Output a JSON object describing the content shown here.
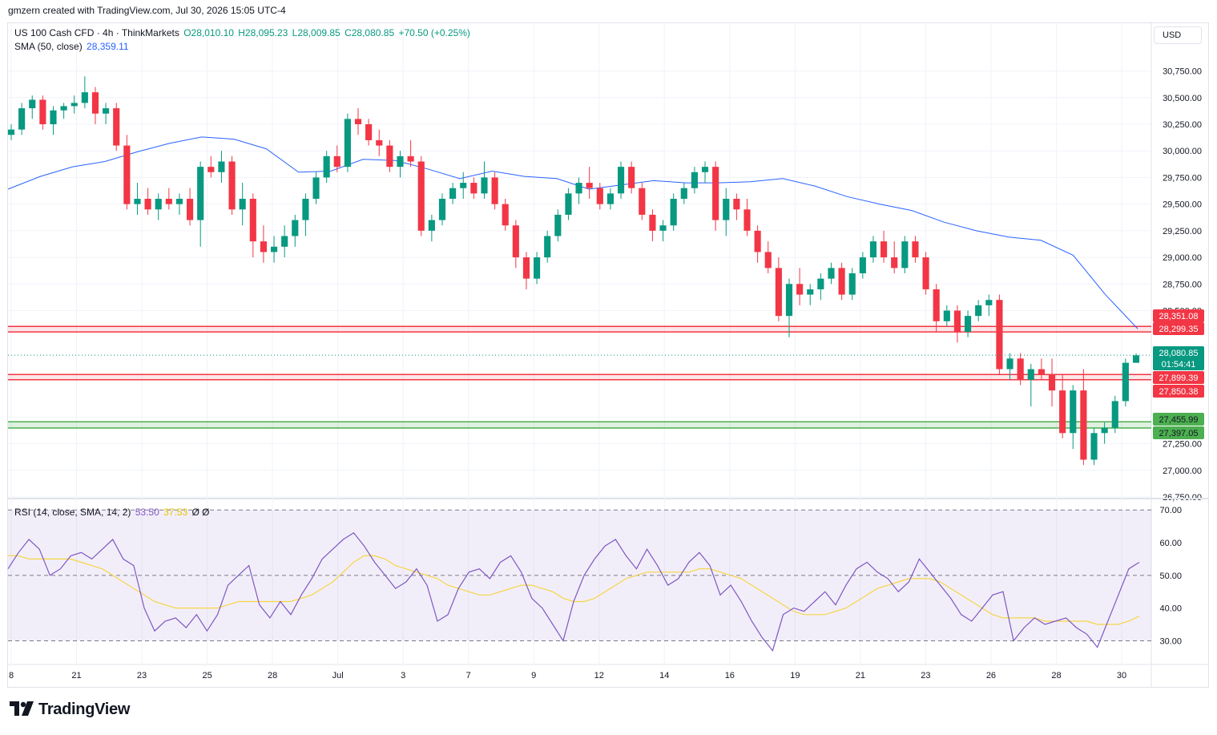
{
  "header": {
    "attribution": "gmzern created with TradingView.com, Jul 30, 2026 15:05 UTC-4"
  },
  "legend": {
    "symbol": "US 100 Cash CFD · 4h · ThinkMarkets",
    "open": "O28,010.10",
    "high": "H28,095.23",
    "low": "L28,009.85",
    "close": "C28,080.85",
    "change": "+70.50 (+0.25%)",
    "sma_label": "SMA (50, close)",
    "sma_value": "28,359.11",
    "rsi_label": "RSI (14, close, SMA, 14, 2)",
    "rsi_value": "53.50",
    "rsi_sma_value": "37.53",
    "rsi_extra": "Ø  Ø"
  },
  "currency": "USD",
  "colors": {
    "up": "#089981",
    "down": "#f23645",
    "sma": "#2962ff",
    "rsi": "#7e57c2",
    "rsi_ma": "#f5d547",
    "resistance": "#f23645",
    "support": "#4caf50"
  },
  "footer": {
    "brand": "TradingView"
  },
  "chart_data": [
    {
      "type": "candlestick",
      "ylim": [
        26750,
        30950
      ],
      "price_ticks": [
        "30,750.00",
        "30,500.00",
        "30,250.00",
        "30,000.00",
        "29,750.00",
        "29,500.00",
        "29,250.00",
        "29,000.00",
        "28,750.00",
        "28,500.00",
        "27,500.00",
        "27,250.00",
        "27,000.00",
        "26,750.00"
      ],
      "tick_values": [
        30750,
        30500,
        30250,
        30000,
        29750,
        29500,
        29250,
        29000,
        28750,
        28500,
        27500,
        27250,
        27000,
        26750
      ],
      "x_ticks": [
        "8",
        "21",
        "23",
        "25",
        "28",
        "Jul",
        "3",
        "7",
        "9",
        "12",
        "14",
        "16",
        "19",
        "21",
        "23",
        "26",
        "28",
        "30"
      ],
      "sma_series_name": "SMA (50, close)",
      "sma": [
        29640,
        29760,
        29850,
        29900,
        29990,
        30070,
        30130,
        30110,
        30020,
        29800,
        29810,
        29920,
        29910,
        29830,
        29740,
        29810,
        29760,
        29740,
        29640,
        29680,
        29720,
        29700,
        29700,
        29710,
        29740,
        29670,
        29570,
        29500,
        29440,
        29330,
        29250,
        29190,
        29160,
        29020,
        28650,
        28330
      ],
      "horizontal_levels": [
        {
          "value": 28351.08,
          "label": "28,351.08",
          "kind": "resistance"
        },
        {
          "value": 28299.35,
          "label": "28,299.35",
          "kind": "resistance"
        },
        {
          "value": 27899.39,
          "label": "27,899.39",
          "kind": "resistance"
        },
        {
          "value": 27850.38,
          "label": "27,850.38",
          "kind": "resistance"
        },
        {
          "value": 27455.99,
          "label": "27,455.99",
          "kind": "support"
        },
        {
          "value": 27397.05,
          "label": "27,397.05",
          "kind": "support"
        }
      ],
      "last_price": {
        "value": 28080.85,
        "label": "28,080.85",
        "countdown": "01:54:41"
      },
      "candles": [
        [
          30150,
          30250,
          30100,
          30200
        ],
        [
          30200,
          30450,
          30150,
          30400
        ],
        [
          30400,
          30520,
          30300,
          30480
        ],
        [
          30480,
          30520,
          30200,
          30250
        ],
        [
          30250,
          30420,
          30150,
          30380
        ],
        [
          30380,
          30450,
          30300,
          30420
        ],
        [
          30420,
          30520,
          30350,
          30450
        ],
        [
          30450,
          30700,
          30400,
          30550
        ],
        [
          30550,
          30600,
          30250,
          30350
        ],
        [
          30350,
          30450,
          30250,
          30400
        ],
        [
          30400,
          30450,
          30000,
          30050
        ],
        [
          30050,
          30150,
          29450,
          29500
        ],
        [
          29500,
          29700,
          29400,
          29550
        ],
        [
          29550,
          29650,
          29400,
          29450
        ],
        [
          29450,
          29600,
          29350,
          29550
        ],
        [
          29550,
          29650,
          29450,
          29500
        ],
        [
          29500,
          29600,
          29400,
          29550
        ],
        [
          29550,
          29650,
          29300,
          29350
        ],
        [
          29350,
          29900,
          29100,
          29850
        ],
        [
          29850,
          29950,
          29750,
          29800
        ],
        [
          29800,
          30000,
          29700,
          29900
        ],
        [
          29900,
          29950,
          29400,
          29450
        ],
        [
          29450,
          29700,
          29300,
          29550
        ],
        [
          29550,
          29600,
          29000,
          29150
        ],
        [
          29150,
          29300,
          28950,
          29050
        ],
        [
          29050,
          29200,
          28950,
          29100
        ],
        [
          29100,
          29300,
          29000,
          29200
        ],
        [
          29200,
          29400,
          29100,
          29350
        ],
        [
          29350,
          29600,
          29200,
          29550
        ],
        [
          29550,
          29800,
          29500,
          29750
        ],
        [
          29750,
          30000,
          29700,
          29950
        ],
        [
          29950,
          30050,
          29800,
          29850
        ],
        [
          29850,
          30350,
          29800,
          30300
        ],
        [
          30300,
          30400,
          30150,
          30250
        ],
        [
          30250,
          30300,
          30050,
          30100
        ],
        [
          30100,
          30200,
          29950,
          30050
        ],
        [
          30050,
          30100,
          29800,
          29850
        ],
        [
          29850,
          30000,
          29750,
          29950
        ],
        [
          29950,
          30100,
          29850,
          29900
        ],
        [
          29900,
          29950,
          29200,
          29250
        ],
        [
          29250,
          29400,
          29150,
          29350
        ],
        [
          29350,
          29600,
          29300,
          29550
        ],
        [
          29550,
          29700,
          29500,
          29650
        ],
        [
          29650,
          29800,
          29550,
          29700
        ],
        [
          29700,
          29750,
          29550,
          29600
        ],
        [
          29600,
          29900,
          29550,
          29750
        ],
        [
          29750,
          29800,
          29450,
          29500
        ],
        [
          29500,
          29550,
          29250,
          29300
        ],
        [
          29300,
          29350,
          28900,
          29000
        ],
        [
          29000,
          29050,
          28700,
          28800
        ],
        [
          28800,
          29050,
          28750,
          29000
        ],
        [
          29000,
          29250,
          28950,
          29200
        ],
        [
          29200,
          29450,
          29150,
          29400
        ],
        [
          29400,
          29650,
          29350,
          29600
        ],
        [
          29600,
          29750,
          29500,
          29700
        ],
        [
          29700,
          29850,
          29550,
          29650
        ],
        [
          29650,
          29700,
          29450,
          29500
        ],
        [
          29500,
          29650,
          29450,
          29600
        ],
        [
          29600,
          29900,
          29550,
          29850
        ],
        [
          29850,
          29900,
          29600,
          29650
        ],
        [
          29650,
          29700,
          29350,
          29400
        ],
        [
          29400,
          29450,
          29150,
          29250
        ],
        [
          29250,
          29350,
          29150,
          29300
        ],
        [
          29300,
          29600,
          29250,
          29550
        ],
        [
          29550,
          29700,
          29500,
          29650
        ],
        [
          29650,
          29850,
          29600,
          29800
        ],
        [
          29800,
          29900,
          29700,
          29850
        ],
        [
          29850,
          29900,
          29250,
          29350
        ],
        [
          29350,
          29650,
          29200,
          29550
        ],
        [
          29550,
          29600,
          29350,
          29450
        ],
        [
          29450,
          29550,
          29200,
          29250
        ],
        [
          29250,
          29300,
          28950,
          29050
        ],
        [
          29050,
          29150,
          28850,
          28900
        ],
        [
          28900,
          29000,
          28400,
          28450
        ],
        [
          28450,
          28800,
          28250,
          28750
        ],
        [
          28750,
          28900,
          28550,
          28650
        ],
        [
          28650,
          28750,
          28550,
          28700
        ],
        [
          28700,
          28850,
          28600,
          28800
        ],
        [
          28800,
          28950,
          28750,
          28900
        ],
        [
          28900,
          28950,
          28600,
          28650
        ],
        [
          28650,
          28900,
          28600,
          28850
        ],
        [
          28850,
          29050,
          28800,
          29000
        ],
        [
          29000,
          29200,
          28950,
          29150
        ],
        [
          29150,
          29250,
          28950,
          29000
        ],
        [
          29000,
          29150,
          28850,
          28900
        ],
        [
          28900,
          29200,
          28850,
          29150
        ],
        [
          29150,
          29200,
          28950,
          29000
        ],
        [
          29000,
          29050,
          28650,
          28700
        ],
        [
          28700,
          28750,
          28300,
          28400
        ],
        [
          28400,
          28550,
          28350,
          28500
        ],
        [
          28500,
          28550,
          28200,
          28300
        ],
        [
          28300,
          28500,
          28250,
          28450
        ],
        [
          28450,
          28600,
          28400,
          28550
        ],
        [
          28550,
          28650,
          28450,
          28600
        ],
        [
          28600,
          28650,
          27900,
          27950
        ],
        [
          27950,
          28100,
          27850,
          28050
        ],
        [
          28050,
          28100,
          27800,
          27850
        ],
        [
          27850,
          28000,
          27600,
          27950
        ],
        [
          27950,
          28050,
          27850,
          27900
        ],
        [
          27900,
          28050,
          27600,
          27750
        ],
        [
          27750,
          27900,
          27300,
          27350
        ],
        [
          27350,
          27800,
          27200,
          27750
        ],
        [
          27750,
          27950,
          27050,
          27100
        ],
        [
          27100,
          27400,
          27050,
          27350
        ],
        [
          27350,
          27450,
          27250,
          27400
        ],
        [
          27400,
          27700,
          27350,
          27650
        ],
        [
          27650,
          28050,
          27600,
          28010
        ],
        [
          28010,
          28095,
          28009,
          28080
        ]
      ]
    },
    {
      "type": "line",
      "title": "RSI (14, close, SMA, 14, 2)",
      "ylim": [
        23,
        73
      ],
      "y_ticks": [
        "70.00",
        "60.00",
        "50.00",
        "40.00",
        "30.00"
      ],
      "tick_values": [
        70,
        60,
        50,
        40,
        30
      ],
      "band": [
        30,
        70
      ],
      "midline": 50,
      "rsi": [
        52,
        57,
        61,
        58,
        50,
        52,
        56,
        57,
        55,
        58,
        61,
        55,
        53,
        40,
        33,
        36,
        37,
        34,
        38,
        33,
        38,
        47,
        50,
        53,
        41,
        37,
        42,
        38,
        44,
        49,
        55,
        58,
        61,
        63,
        59,
        54,
        50,
        46,
        48,
        52,
        47,
        36,
        38,
        46,
        51,
        52,
        49,
        54,
        56,
        51,
        43,
        40,
        35,
        30,
        42,
        50,
        55,
        59,
        61,
        56,
        52,
        58,
        53,
        47,
        49,
        54,
        57,
        53,
        44,
        47,
        42,
        36,
        31,
        27,
        38,
        40,
        39,
        42,
        45,
        41,
        47,
        52,
        54,
        51,
        49,
        45,
        48,
        55,
        51,
        47,
        43,
        38,
        36,
        40,
        44,
        45,
        30,
        34,
        37,
        35,
        36,
        37,
        34,
        32,
        28,
        36,
        44,
        52,
        54
      ],
      "rsi_ma": [
        56,
        56,
        55,
        55,
        55,
        55,
        55,
        54,
        53,
        52,
        50,
        48,
        46,
        44,
        42,
        41,
        40,
        40,
        40,
        40,
        40,
        41,
        42,
        42,
        42,
        42,
        42,
        42,
        43,
        44,
        46,
        48,
        51,
        54,
        56,
        56,
        55,
        53,
        52,
        51,
        50,
        49,
        47,
        46,
        45,
        44,
        44,
        45,
        46,
        47,
        47,
        46,
        45,
        43,
        42,
        42,
        43,
        45,
        47,
        49,
        50,
        51,
        51,
        51,
        51,
        51,
        52,
        52,
        51,
        50,
        49,
        47,
        45,
        43,
        41,
        39,
        38,
        38,
        38,
        39,
        40,
        42,
        44,
        46,
        47,
        48,
        49,
        49,
        49,
        48,
        46,
        44,
        42,
        40,
        38,
        37,
        37,
        37,
        37,
        36,
        36,
        36,
        36,
        36,
        35,
        35,
        35,
        36,
        37.53
      ]
    }
  ]
}
